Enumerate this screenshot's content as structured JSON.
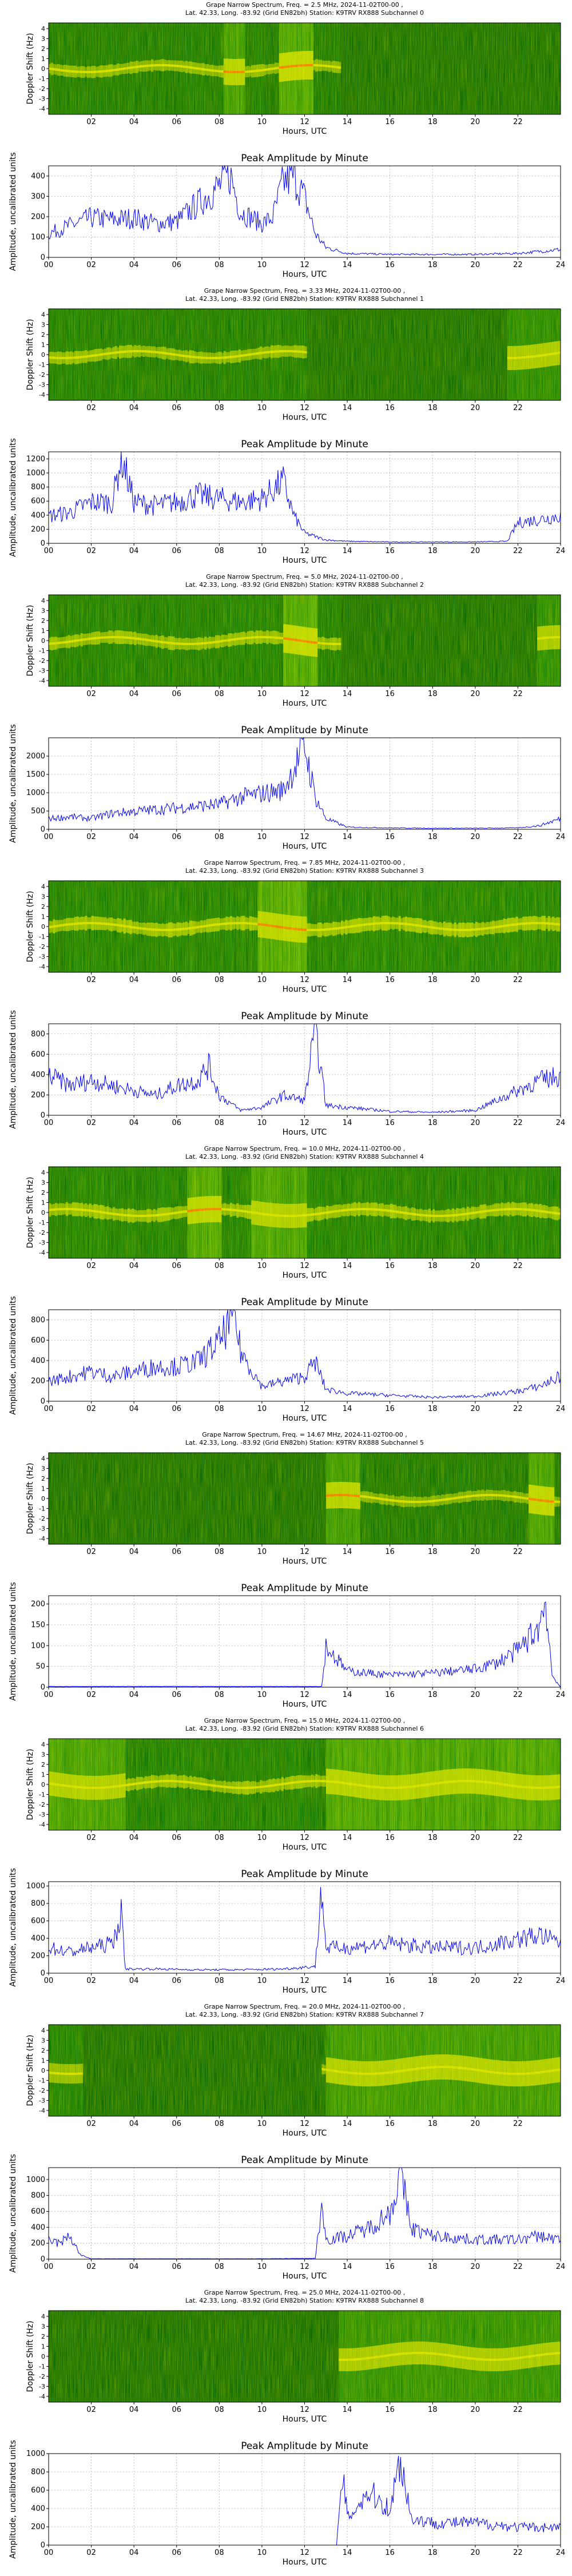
{
  "colors": {
    "line": "#0000ff",
    "grid": "#b0b0b0",
    "spec_low": "#006400",
    "spec_mid": "#1c9a12",
    "spec_hi": "#d8e000",
    "spec_peak": "#ff6a00",
    "spec_blank": "#ffffff"
  },
  "shared": {
    "spec_xticks": [
      "02",
      "04",
      "06",
      "08",
      "10",
      "12",
      "14",
      "16",
      "18",
      "20",
      "22"
    ],
    "spec_xlabel": "Hours, UTC",
    "spec_ylabel": "Doppler Shift (Hz)",
    "spec_yticks": [
      "4",
      "3",
      "2",
      "1",
      "0",
      "-1",
      "-2",
      "-3",
      "-4"
    ],
    "line_xticks": [
      "00",
      "02",
      "04",
      "06",
      "08",
      "10",
      "12",
      "14",
      "16",
      "18",
      "20",
      "22",
      "24"
    ],
    "line_xlabel": "Hours, UTC",
    "line_ylabel": "Amplitude, uncalibrated units",
    "line_title": "Peak Amplitude by Minute"
  },
  "channels": [
    {
      "spec_title_1": "Grape Narrow Spectrum, Freq. = 2.5 MHz, 2024-11-02T00-00 ,",
      "spec_title_2": "Lat.  42.33, Long. -83.92 (Grid EN82bh) Station: K9TRV RX888 Subchannel 0",
      "spec_profile": {
        "trace_end": 13.6,
        "brightness": 0.55,
        "bright_windows": [
          [
            8.2,
            9.2,
            0.9
          ],
          [
            10.8,
            12.3,
            1.0
          ]
        ]
      }
    },
    {
      "spec_title_1": "Grape Narrow Spectrum, Freq. = 3.33 MHz, 2024-11-02T00-00 ,",
      "spec_title_2": "Lat.  42.33, Long. -83.92 (Grid EN82bh) Station: K9TRV RX888 Subchannel 1",
      "spec_profile": {
        "trace_end": 12.0,
        "brightness": 0.6,
        "bright_windows": [
          [
            21.5,
            24,
            0.8
          ]
        ]
      }
    },
    {
      "spec_title_1": "Grape Narrow Spectrum, Freq. = 5.0 MHz, 2024-11-02T00-00 ,",
      "spec_title_2": "Lat.  42.33, Long. -83.92 (Grid EN82bh) Station: K9TRV RX888 Subchannel 2",
      "spec_profile": {
        "trace_end": 13.6,
        "brightness": 0.65,
        "bright_windows": [
          [
            11.0,
            12.6,
            1.0
          ],
          [
            22.8,
            24,
            0.8
          ]
        ]
      }
    },
    {
      "spec_title_1": "Grape Narrow Spectrum, Freq. = 7.85 MHz, 2024-11-02T00-00 ,",
      "spec_title_2": "Lat.  42.33, Long. -83.92 (Grid EN82bh) Station: K9TRV RX888 Subchannel 3",
      "spec_profile": {
        "trace_end": 24,
        "brightness": 0.75,
        "bright_windows": [
          [
            9.8,
            12.0,
            0.9
          ]
        ]
      }
    },
    {
      "spec_title_1": "Grape Narrow Spectrum, Freq. = 10.0 MHz, 2024-11-02T00-00 ,",
      "spec_title_2": "Lat.  42.33, Long. -83.92 (Grid EN82bh) Station: K9TRV RX888 Subchannel 4",
      "spec_profile": {
        "trace_end": 24,
        "brightness": 0.7,
        "bright_windows": [
          [
            6.5,
            8.0,
            0.9
          ],
          [
            9.5,
            12.0,
            0.8
          ]
        ]
      }
    },
    {
      "spec_title_1": "Grape Narrow Spectrum, Freq. = 14.67 MHz, 2024-11-02T00-00 ,",
      "spec_title_2": "Lat.  42.33, Long. -83.92 (Grid EN82bh) Station: K9TRV RX888 Subchannel 5",
      "spec_profile": {
        "trace_end": 24,
        "brightness": 0.45,
        "trace_start": 13.0,
        "bright_windows": [
          [
            13.0,
            14.5,
            0.9
          ],
          [
            22.5,
            23.6,
            1.0
          ]
        ]
      }
    },
    {
      "spec_title_1": "Grape Narrow Spectrum, Freq. = 15.0 MHz, 2024-11-02T00-00 ,",
      "spec_title_2": "Lat.  42.33, Long. -83.92 (Grid EN82bh) Station: K9TRV RX888 Subchannel 6",
      "spec_profile": {
        "trace_end": 24,
        "brightness": 0.65,
        "bright_windows": [
          [
            0,
            3.5,
            0.8
          ],
          [
            13.0,
            24,
            0.85
          ]
        ]
      }
    },
    {
      "spec_title_1": "Grape Narrow Spectrum, Freq. = 20.0 MHz, 2024-11-02T00-00 ,",
      "spec_title_2": "Lat.  42.33, Long. -83.92 (Grid EN82bh) Station: K9TRV RX888 Subchannel 7",
      "spec_profile": {
        "trace_end": 24,
        "brightness": 0.45,
        "trace_start": 12.8,
        "bright_windows": [
          [
            0,
            1.5,
            0.6
          ],
          [
            13.0,
            24,
            0.85
          ]
        ]
      }
    },
    {
      "spec_title_1": "Grape Narrow Spectrum, Freq. = 25.0 MHz, 2024-11-02T00-00 ,",
      "spec_title_2": "Lat.  42.33, Long. -83.92 (Grid EN82bh) Station: K9TRV RX888 Subchannel 8",
      "spec_profile": {
        "trace_end": 24,
        "brightness": 0.4,
        "trace_start": 13.6,
        "bright_windows": [
          [
            13.6,
            24,
            0.75
          ]
        ]
      }
    }
  ],
  "chart_data": [
    {
      "type": "line",
      "title": "Peak Amplitude by Minute",
      "xlabel": "Hours, UTC",
      "ylabel": "Amplitude, uncalibrated units",
      "xlim": [
        0,
        24
      ],
      "ylim": [
        0,
        450
      ],
      "yticks": [
        0,
        100,
        200,
        300,
        400
      ],
      "x": [
        0,
        1,
        2,
        3,
        4,
        5,
        6,
        7,
        8,
        8.5,
        9,
        10,
        10.5,
        11,
        11.5,
        12,
        12.5,
        13,
        14,
        16,
        18,
        20,
        22,
        23,
        24
      ],
      "y": [
        120,
        160,
        200,
        190,
        200,
        170,
        180,
        270,
        360,
        420,
        230,
        170,
        200,
        380,
        410,
        300,
        120,
        50,
        20,
        15,
        15,
        15,
        20,
        30,
        40
      ]
    },
    {
      "type": "line",
      "title": "Peak Amplitude by Minute",
      "xlabel": "Hours, UTC",
      "ylabel": "Amplitude, uncalibrated units",
      "xlim": [
        0,
        24
      ],
      "ylim": [
        0,
        1300
      ],
      "yticks": [
        0,
        200,
        400,
        600,
        800,
        1000,
        1200
      ],
      "x": [
        0,
        1,
        2,
        3,
        3.4,
        4,
        5,
        6,
        7,
        8,
        9,
        10,
        11,
        11.5,
        12,
        13,
        14,
        16,
        18,
        20,
        21.5,
        22,
        23,
        24
      ],
      "y": [
        400,
        450,
        600,
        600,
        1290,
        600,
        550,
        600,
        700,
        650,
        600,
        650,
        900,
        400,
        150,
        50,
        30,
        20,
        20,
        20,
        30,
        300,
        350,
        400
      ]
    },
    {
      "type": "line",
      "title": "Peak Amplitude by Minute",
      "xlabel": "Hours, UTC",
      "ylabel": "Amplitude, uncalibrated units",
      "xlim": [
        0,
        24
      ],
      "ylim": [
        0,
        2500
      ],
      "yticks": [
        0,
        500,
        1000,
        1500,
        2000
      ],
      "x": [
        0,
        1,
        2,
        3,
        4,
        5,
        6,
        7,
        8,
        9,
        10,
        11,
        11.5,
        12,
        12.5,
        13,
        14,
        16,
        18,
        20,
        22,
        23,
        24
      ],
      "y": [
        300,
        350,
        300,
        450,
        500,
        550,
        600,
        650,
        700,
        900,
        1000,
        1100,
        1700,
        2350,
        900,
        300,
        60,
        40,
        30,
        30,
        40,
        100,
        300
      ]
    },
    {
      "type": "line",
      "title": "Peak Amplitude by Minute",
      "xlabel": "Hours, UTC",
      "ylabel": "Amplitude, uncalibrated units",
      "xlim": [
        0,
        24
      ],
      "ylim": [
        0,
        900
      ],
      "yticks": [
        0,
        200,
        400,
        600,
        800
      ],
      "x": [
        0,
        1,
        2,
        3,
        4,
        5,
        6,
        7,
        7.5,
        8,
        9,
        10,
        11,
        12,
        12.5,
        13,
        14,
        16,
        18,
        20,
        22,
        23,
        24
      ],
      "y": [
        400,
        300,
        350,
        300,
        250,
        200,
        300,
        350,
        500,
        200,
        50,
        80,
        200,
        150,
        880,
        100,
        80,
        40,
        30,
        50,
        250,
        350,
        400
      ]
    },
    {
      "type": "line",
      "title": "Peak Amplitude by Minute",
      "xlabel": "Hours, UTC",
      "ylabel": "Amplitude, uncalibrated units",
      "xlim": [
        0,
        24
      ],
      "ylim": [
        0,
        900
      ],
      "yticks": [
        0,
        200,
        400,
        600,
        800
      ],
      "x": [
        0,
        1,
        2,
        3,
        4,
        5,
        6,
        7,
        8,
        8.7,
        9,
        10,
        11,
        12,
        12.5,
        13,
        14,
        16,
        18,
        20,
        22,
        23,
        24
      ],
      "y": [
        200,
        250,
        300,
        250,
        300,
        350,
        350,
        400,
        600,
        880,
        500,
        150,
        200,
        250,
        400,
        120,
        80,
        60,
        40,
        50,
        100,
        150,
        250
      ]
    },
    {
      "type": "line",
      "title": "Peak Amplitude by Minute",
      "xlabel": "Hours, UTC",
      "ylabel": "Amplitude, uncalibrated units",
      "xlim": [
        0,
        24
      ],
      "ylim": [
        0,
        220
      ],
      "yticks": [
        0,
        50,
        100,
        150,
        200
      ],
      "x": [
        0,
        4,
        8,
        12,
        12.8,
        13,
        13.5,
        14,
        16,
        18,
        20,
        21,
        22,
        23,
        23.3,
        23.6,
        24
      ],
      "y": [
        2,
        2,
        2,
        2,
        2,
        100,
        70,
        40,
        30,
        35,
        45,
        60,
        90,
        150,
        215,
        30,
        0
      ]
    },
    {
      "type": "line",
      "title": "Peak Amplitude by Minute",
      "xlabel": "Hours, UTC",
      "ylabel": "Amplitude, uncalibrated units",
      "xlim": [
        0,
        24
      ],
      "ylim": [
        0,
        1050
      ],
      "yticks": [
        0,
        200,
        400,
        600,
        800,
        1000
      ],
      "x": [
        0,
        1,
        2,
        3,
        3.4,
        3.6,
        5,
        7,
        9,
        11,
        12.5,
        12.8,
        13,
        14,
        16,
        18,
        20,
        22,
        23,
        24
      ],
      "y": [
        300,
        250,
        300,
        350,
        700,
        50,
        50,
        40,
        40,
        50,
        80,
        1000,
        300,
        300,
        350,
        300,
        300,
        400,
        450,
        350
      ]
    },
    {
      "type": "line",
      "title": "Peak Amplitude by Minute",
      "xlabel": "Hours, UTC",
      "ylabel": "Amplitude, uncalibrated units",
      "xlim": [
        0,
        24
      ],
      "ylim": [
        0,
        1150
      ],
      "yticks": [
        0,
        200,
        400,
        600,
        800,
        1000
      ],
      "x": [
        0,
        0.5,
        1,
        1.5,
        2,
        6,
        10,
        12.5,
        12.8,
        13,
        14,
        15,
        16,
        16.5,
        17,
        18,
        20,
        22,
        23,
        24
      ],
      "y": [
        250,
        200,
        300,
        50,
        5,
        5,
        5,
        10,
        700,
        250,
        300,
        400,
        600,
        1100,
        400,
        300,
        250,
        250,
        300,
        250
      ]
    },
    {
      "type": "line",
      "title": "Peak Amplitude by Minute",
      "xlabel": "Hours, UTC",
      "ylabel": "Amplitude, uncalibrated units",
      "xlim": [
        0,
        24
      ],
      "ylim": [
        0,
        1000
      ],
      "yticks": [
        0,
        200,
        400,
        600,
        800,
        1000
      ],
      "x": [
        0,
        4,
        8,
        12,
        13.5,
        13.8,
        14,
        15,
        16,
        16.5,
        17,
        18,
        20,
        22,
        24
      ],
      "y": [
        0,
        0,
        0,
        0,
        0,
        800,
        300,
        600,
        400,
        980,
        300,
        250,
        250,
        200,
        200
      ]
    }
  ]
}
